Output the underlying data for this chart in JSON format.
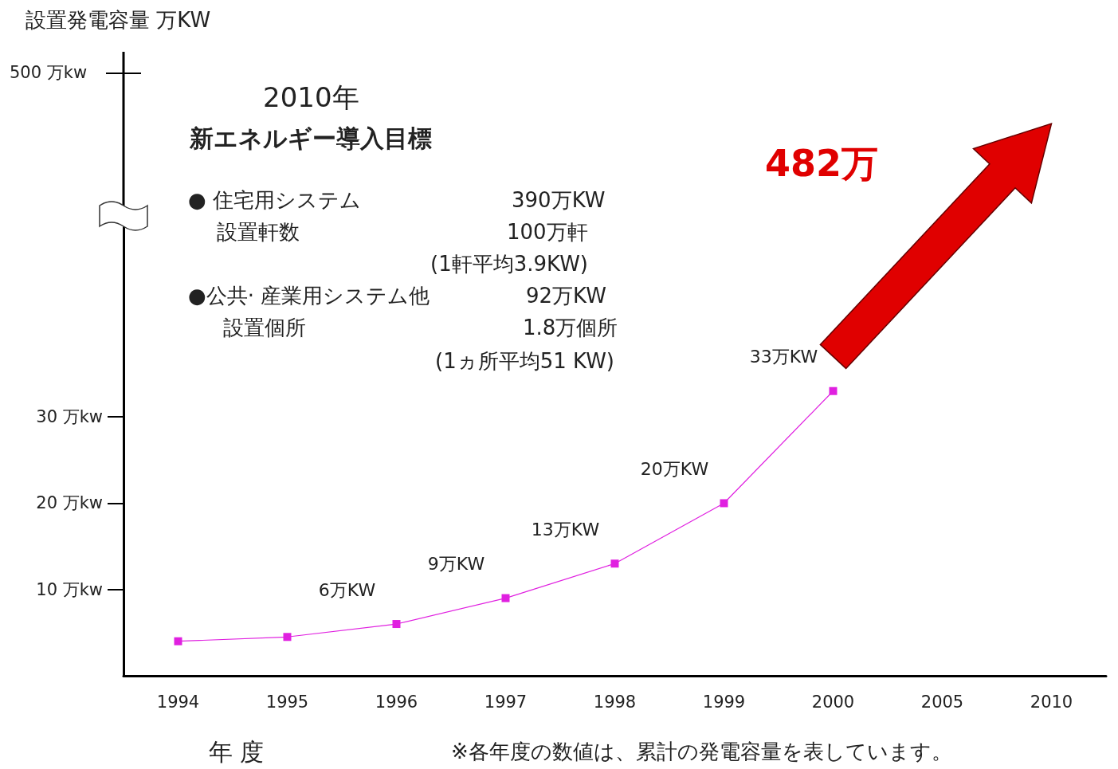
{
  "chart_data": [
    {
      "type": "other",
      "annotations": [
        "設置発電容量 万KW",
        "500 万kw"
      ]
    },
    {
      "type": "line",
      "xlabel": "年 度",
      "categories": [
        "1994",
        "1995",
        "1996",
        "1997",
        "1998",
        "1999",
        "2000",
        "2005",
        "2010"
      ],
      "series": [
        {
          "color": "#e020e0",
          "values": [
            4,
            4.5,
            6,
            9,
            13,
            20,
            33,
            null,
            null
          ],
          "value_labels": [
            null,
            null,
            "6万KW",
            "9万KW",
            "13万KW",
            "20万KW",
            "33万KW",
            null,
            null
          ]
        }
      ],
      "ylim": [
        0,
        52
      ],
      "yticks": [
        {
          "value": 10,
          "label": "10 万kw"
        },
        {
          "value": 20,
          "label": "20 万kw"
        },
        {
          "value": 30,
          "label": "30 万kw"
        }
      ],
      "annotations": [
        "2010年",
        "新エネルギー導入目標",
        "● 住宅用システム",
        "390万KW",
        "設置軒数",
        "100万軒",
        "(1軒平均3.9KW)",
        "●公共· 産業用システム他",
        "92万KW",
        "設置個所",
        "1.8万個所",
        "(1ヵ所平均51 KW)",
        "482万",
        "※各年度の数値は、累計の発電容量を表しています。"
      ],
      "grid": false,
      "marker": "square",
      "line_style": "solid"
    }
  ]
}
